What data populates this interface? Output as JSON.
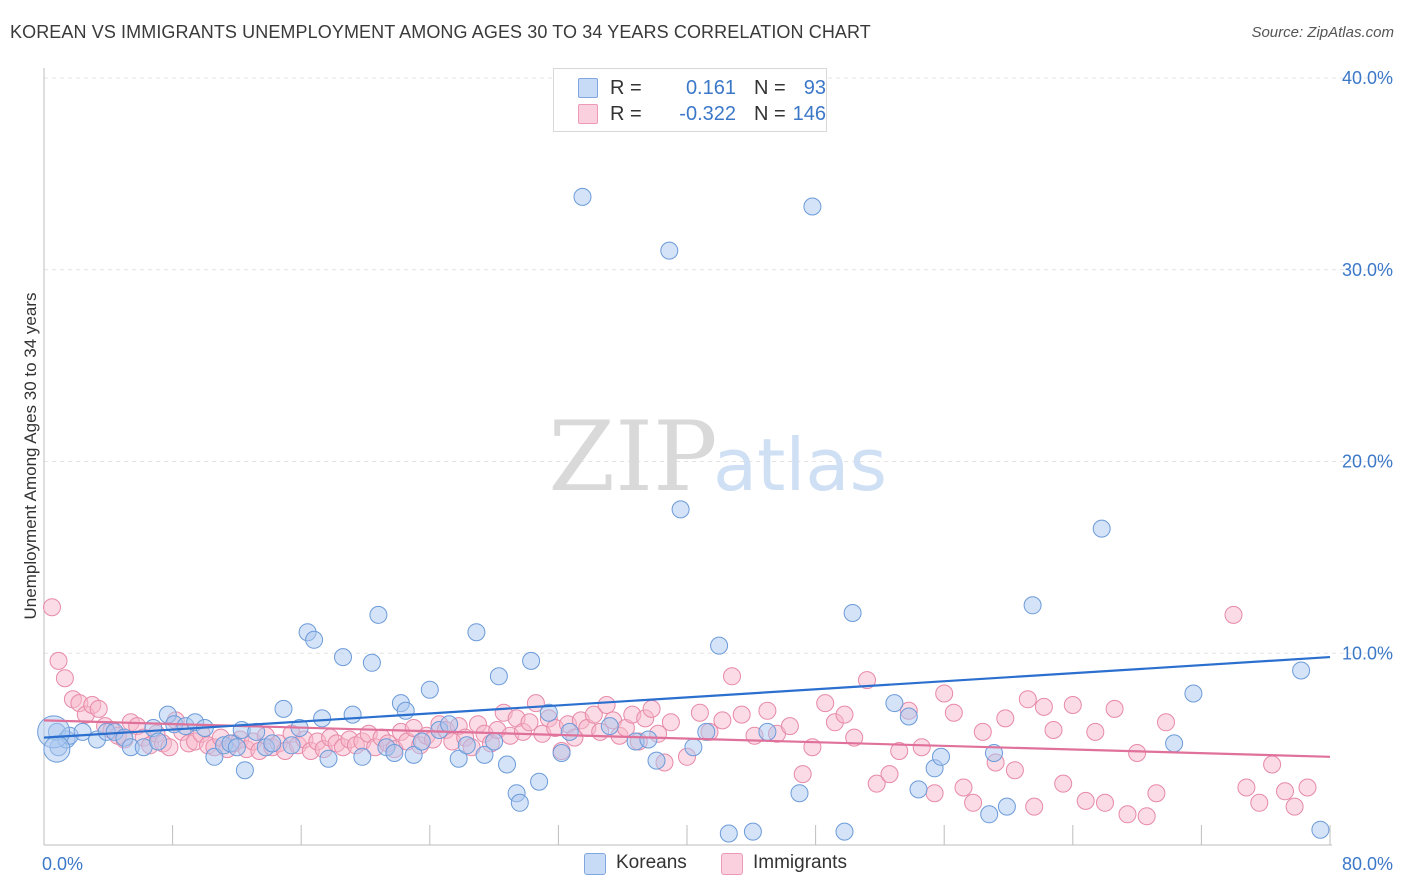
{
  "title": "KOREAN VS IMMIGRANTS UNEMPLOYMENT AMONG AGES 30 TO 34 YEARS CORRELATION CHART",
  "source": "Source: ZipAtlas.com",
  "watermark": {
    "zip": "ZIP",
    "atlas": "atlas"
  },
  "legend": {
    "r_label": "R =",
    "n_label": "N =",
    "rows": [
      {
        "series": "Koreans",
        "r": "0.161",
        "n": "93",
        "color": "#a9c8f0"
      },
      {
        "series": "Immigrants",
        "r": "-0.322",
        "n": "146",
        "color": "#f7b8cc"
      }
    ]
  },
  "colors": {
    "korean_fill": "#a9c8f0",
    "korean_stroke": "#6c9bd9",
    "korean_line": "#2b6fcf",
    "immigrant_fill": "#f7b8cc",
    "immigrant_stroke": "#e78aa8",
    "immigrant_line": "#e0719a",
    "tick_text": "#3c78c8"
  },
  "chart_data": {
    "type": "scatter",
    "title": "KOREAN VS IMMIGRANTS UNEMPLOYMENT AMONG AGES 30 TO 34 YEARS CORRELATION CHART",
    "xlabel": "",
    "ylabel": "Unemployment Among Ages 30 to 34 years",
    "xlim": [
      0,
      80
    ],
    "ylim": [
      0,
      40
    ],
    "x_tick_labels": [
      "0.0%",
      "80.0%"
    ],
    "y_ticks": [
      10,
      20,
      30,
      40
    ],
    "y_tick_labels": [
      "10.0%",
      "20.0%",
      "30.0%",
      "40.0%"
    ],
    "grid": true,
    "legend_position": "top-center",
    "series": [
      {
        "name": "Koreans",
        "r": 0.161,
        "n": 93,
        "trend": [
          [
            0,
            5.6
          ],
          [
            80,
            9.8
          ]
        ],
        "points": [
          [
            0.8,
            5.9
          ],
          [
            0.9,
            5.1
          ],
          [
            1.4,
            5.5
          ],
          [
            1.6,
            5.7
          ],
          [
            2.4,
            5.9
          ],
          [
            3.3,
            5.5
          ],
          [
            3.9,
            5.9
          ],
          [
            4.4,
            5.9
          ],
          [
            5.0,
            5.6
          ],
          [
            5.4,
            5.1
          ],
          [
            6.2,
            5.1
          ],
          [
            6.8,
            6.1
          ],
          [
            7.1,
            5.4
          ],
          [
            7.7,
            6.8
          ],
          [
            8.1,
            6.3
          ],
          [
            8.8,
            6.2
          ],
          [
            9.4,
            6.4
          ],
          [
            10.0,
            6.1
          ],
          [
            10.6,
            4.6
          ],
          [
            11.2,
            5.2
          ],
          [
            11.6,
            5.3
          ],
          [
            12.0,
            5.1
          ],
          [
            12.3,
            6.0
          ],
          [
            12.5,
            3.9
          ],
          [
            13.2,
            5.9
          ],
          [
            13.8,
            5.1
          ],
          [
            14.2,
            5.3
          ],
          [
            14.9,
            7.1
          ],
          [
            15.4,
            5.2
          ],
          [
            15.9,
            6.1
          ],
          [
            16.4,
            11.1
          ],
          [
            16.8,
            10.7
          ],
          [
            17.3,
            6.6
          ],
          [
            17.7,
            4.5
          ],
          [
            18.6,
            9.8
          ],
          [
            19.2,
            6.8
          ],
          [
            19.8,
            4.6
          ],
          [
            20.4,
            9.5
          ],
          [
            20.8,
            12.0
          ],
          [
            21.3,
            5.1
          ],
          [
            21.8,
            4.8
          ],
          [
            22.2,
            7.4
          ],
          [
            22.5,
            7.0
          ],
          [
            23.0,
            4.7
          ],
          [
            23.5,
            5.4
          ],
          [
            24.0,
            8.1
          ],
          [
            24.6,
            6.0
          ],
          [
            25.2,
            6.3
          ],
          [
            25.8,
            4.5
          ],
          [
            26.3,
            5.2
          ],
          [
            26.9,
            11.1
          ],
          [
            27.4,
            4.7
          ],
          [
            28.0,
            5.4
          ],
          [
            28.3,
            8.8
          ],
          [
            28.8,
            4.2
          ],
          [
            29.4,
            2.7
          ],
          [
            29.6,
            2.2
          ],
          [
            30.3,
            9.6
          ],
          [
            30.8,
            3.3
          ],
          [
            31.4,
            6.9
          ],
          [
            32.2,
            4.8
          ],
          [
            32.7,
            5.9
          ],
          [
            33.5,
            33.8
          ],
          [
            35.2,
            6.2
          ],
          [
            36.8,
            5.4
          ],
          [
            37.6,
            5.5
          ],
          [
            38.1,
            4.4
          ],
          [
            38.9,
            31.0
          ],
          [
            39.6,
            17.5
          ],
          [
            40.4,
            5.1
          ],
          [
            41.2,
            5.9
          ],
          [
            42.0,
            10.4
          ],
          [
            42.6,
            0.6
          ],
          [
            44.1,
            0.7
          ],
          [
            45.0,
            5.9
          ],
          [
            47.0,
            2.7
          ],
          [
            47.8,
            33.3
          ],
          [
            49.8,
            0.7
          ],
          [
            50.3,
            12.1
          ],
          [
            52.9,
            7.4
          ],
          [
            53.8,
            6.7
          ],
          [
            54.4,
            2.9
          ],
          [
            55.4,
            4.0
          ],
          [
            55.8,
            4.6
          ],
          [
            58.8,
            1.6
          ],
          [
            59.1,
            4.8
          ],
          [
            59.9,
            2.0
          ],
          [
            61.5,
            12.5
          ],
          [
            65.8,
            16.5
          ],
          [
            70.3,
            5.3
          ],
          [
            71.5,
            7.9
          ],
          [
            78.2,
            9.1
          ],
          [
            79.4,
            0.8
          ]
        ]
      },
      {
        "name": "Immigrants",
        "r": -0.322,
        "n": 146,
        "trend": [
          [
            0,
            6.5
          ],
          [
            80,
            4.6
          ]
        ],
        "points": [
          [
            0.5,
            12.4
          ],
          [
            0.9,
            9.6
          ],
          [
            1.3,
            8.7
          ],
          [
            1.8,
            7.6
          ],
          [
            2.2,
            7.4
          ],
          [
            2.6,
            6.8
          ],
          [
            3.0,
            7.3
          ],
          [
            3.4,
            7.1
          ],
          [
            3.8,
            6.2
          ],
          [
            4.2,
            6.0
          ],
          [
            4.6,
            5.7
          ],
          [
            5.0,
            5.5
          ],
          [
            5.4,
            6.4
          ],
          [
            5.8,
            6.2
          ],
          [
            6.2,
            5.6
          ],
          [
            6.6,
            5.2
          ],
          [
            7.0,
            5.8
          ],
          [
            7.4,
            5.3
          ],
          [
            7.8,
            5.1
          ],
          [
            8.2,
            6.5
          ],
          [
            8.6,
            5.9
          ],
          [
            9.0,
            5.3
          ],
          [
            9.4,
            5.4
          ],
          [
            9.8,
            5.8
          ],
          [
            10.2,
            5.2
          ],
          [
            10.6,
            5.1
          ],
          [
            11.0,
            5.6
          ],
          [
            11.4,
            5.0
          ],
          [
            11.8,
            5.3
          ],
          [
            12.2,
            5.5
          ],
          [
            12.6,
            5.0
          ],
          [
            13.0,
            5.4
          ],
          [
            13.4,
            4.9
          ],
          [
            13.8,
            5.7
          ],
          [
            14.2,
            5.1
          ],
          [
            14.6,
            5.3
          ],
          [
            15.0,
            4.9
          ],
          [
            15.4,
            5.8
          ],
          [
            15.8,
            5.2
          ],
          [
            16.2,
            5.5
          ],
          [
            16.6,
            4.9
          ],
          [
            17.0,
            5.4
          ],
          [
            17.4,
            5.0
          ],
          [
            17.8,
            5.6
          ],
          [
            18.2,
            5.3
          ],
          [
            18.6,
            5.1
          ],
          [
            19.0,
            5.5
          ],
          [
            19.4,
            5.2
          ],
          [
            19.8,
            5.4
          ],
          [
            20.2,
            5.8
          ],
          [
            20.6,
            5.1
          ],
          [
            21.0,
            5.6
          ],
          [
            21.4,
            5.3
          ],
          [
            21.8,
            5.0
          ],
          [
            22.2,
            5.9
          ],
          [
            22.6,
            5.4
          ],
          [
            23.0,
            6.1
          ],
          [
            23.4,
            5.2
          ],
          [
            23.8,
            5.7
          ],
          [
            24.2,
            5.5
          ],
          [
            24.6,
            6.3
          ],
          [
            25.0,
            6.0
          ],
          [
            25.4,
            5.4
          ],
          [
            25.8,
            6.2
          ],
          [
            26.2,
            5.6
          ],
          [
            26.6,
            5.1
          ],
          [
            27.0,
            6.3
          ],
          [
            27.4,
            5.8
          ],
          [
            27.8,
            5.3
          ],
          [
            28.2,
            6.0
          ],
          [
            28.6,
            6.9
          ],
          [
            29.0,
            5.7
          ],
          [
            29.4,
            6.6
          ],
          [
            29.8,
            5.9
          ],
          [
            30.2,
            6.4
          ],
          [
            30.6,
            7.4
          ],
          [
            31.0,
            5.8
          ],
          [
            31.4,
            6.6
          ],
          [
            31.8,
            6.1
          ],
          [
            32.2,
            4.9
          ],
          [
            32.6,
            6.3
          ],
          [
            33.0,
            5.6
          ],
          [
            33.4,
            6.5
          ],
          [
            33.8,
            6.1
          ],
          [
            34.2,
            6.8
          ],
          [
            34.6,
            5.9
          ],
          [
            35.0,
            7.3
          ],
          [
            35.4,
            6.5
          ],
          [
            35.8,
            5.7
          ],
          [
            36.2,
            6.1
          ],
          [
            36.6,
            6.8
          ],
          [
            37.0,
            5.4
          ],
          [
            37.4,
            6.6
          ],
          [
            37.8,
            7.1
          ],
          [
            38.2,
            5.8
          ],
          [
            38.6,
            4.3
          ],
          [
            39.0,
            6.4
          ],
          [
            40.0,
            4.6
          ],
          [
            40.8,
            6.9
          ],
          [
            41.4,
            5.9
          ],
          [
            42.2,
            6.5
          ],
          [
            42.8,
            8.8
          ],
          [
            43.4,
            6.8
          ],
          [
            44.2,
            5.7
          ],
          [
            45.0,
            7.0
          ],
          [
            45.6,
            5.8
          ],
          [
            46.4,
            6.2
          ],
          [
            47.2,
            3.7
          ],
          [
            47.8,
            5.1
          ],
          [
            48.6,
            7.4
          ],
          [
            49.2,
            6.4
          ],
          [
            49.8,
            6.8
          ],
          [
            50.4,
            5.6
          ],
          [
            51.2,
            8.6
          ],
          [
            51.8,
            3.2
          ],
          [
            52.6,
            3.7
          ],
          [
            53.2,
            4.9
          ],
          [
            53.8,
            7.0
          ],
          [
            54.6,
            5.1
          ],
          [
            55.4,
            2.7
          ],
          [
            56.0,
            7.9
          ],
          [
            56.6,
            6.9
          ],
          [
            57.2,
            3.0
          ],
          [
            57.8,
            2.2
          ],
          [
            58.4,
            5.9
          ],
          [
            59.2,
            4.3
          ],
          [
            59.8,
            6.6
          ],
          [
            60.4,
            3.9
          ],
          [
            61.2,
            7.6
          ],
          [
            61.6,
            2.0
          ],
          [
            62.2,
            7.2
          ],
          [
            62.8,
            6.0
          ],
          [
            63.4,
            3.2
          ],
          [
            64.0,
            7.3
          ],
          [
            64.8,
            2.3
          ],
          [
            65.4,
            5.9
          ],
          [
            66.0,
            2.2
          ],
          [
            66.6,
            7.1
          ],
          [
            67.4,
            1.6
          ],
          [
            68.0,
            4.8
          ],
          [
            68.6,
            1.5
          ],
          [
            69.2,
            2.7
          ],
          [
            69.8,
            6.4
          ],
          [
            74.0,
            12.0
          ],
          [
            74.8,
            3.0
          ],
          [
            75.6,
            2.2
          ],
          [
            76.4,
            4.2
          ],
          [
            77.2,
            2.8
          ],
          [
            77.8,
            2.0
          ],
          [
            78.6,
            3.0
          ]
        ]
      }
    ]
  }
}
